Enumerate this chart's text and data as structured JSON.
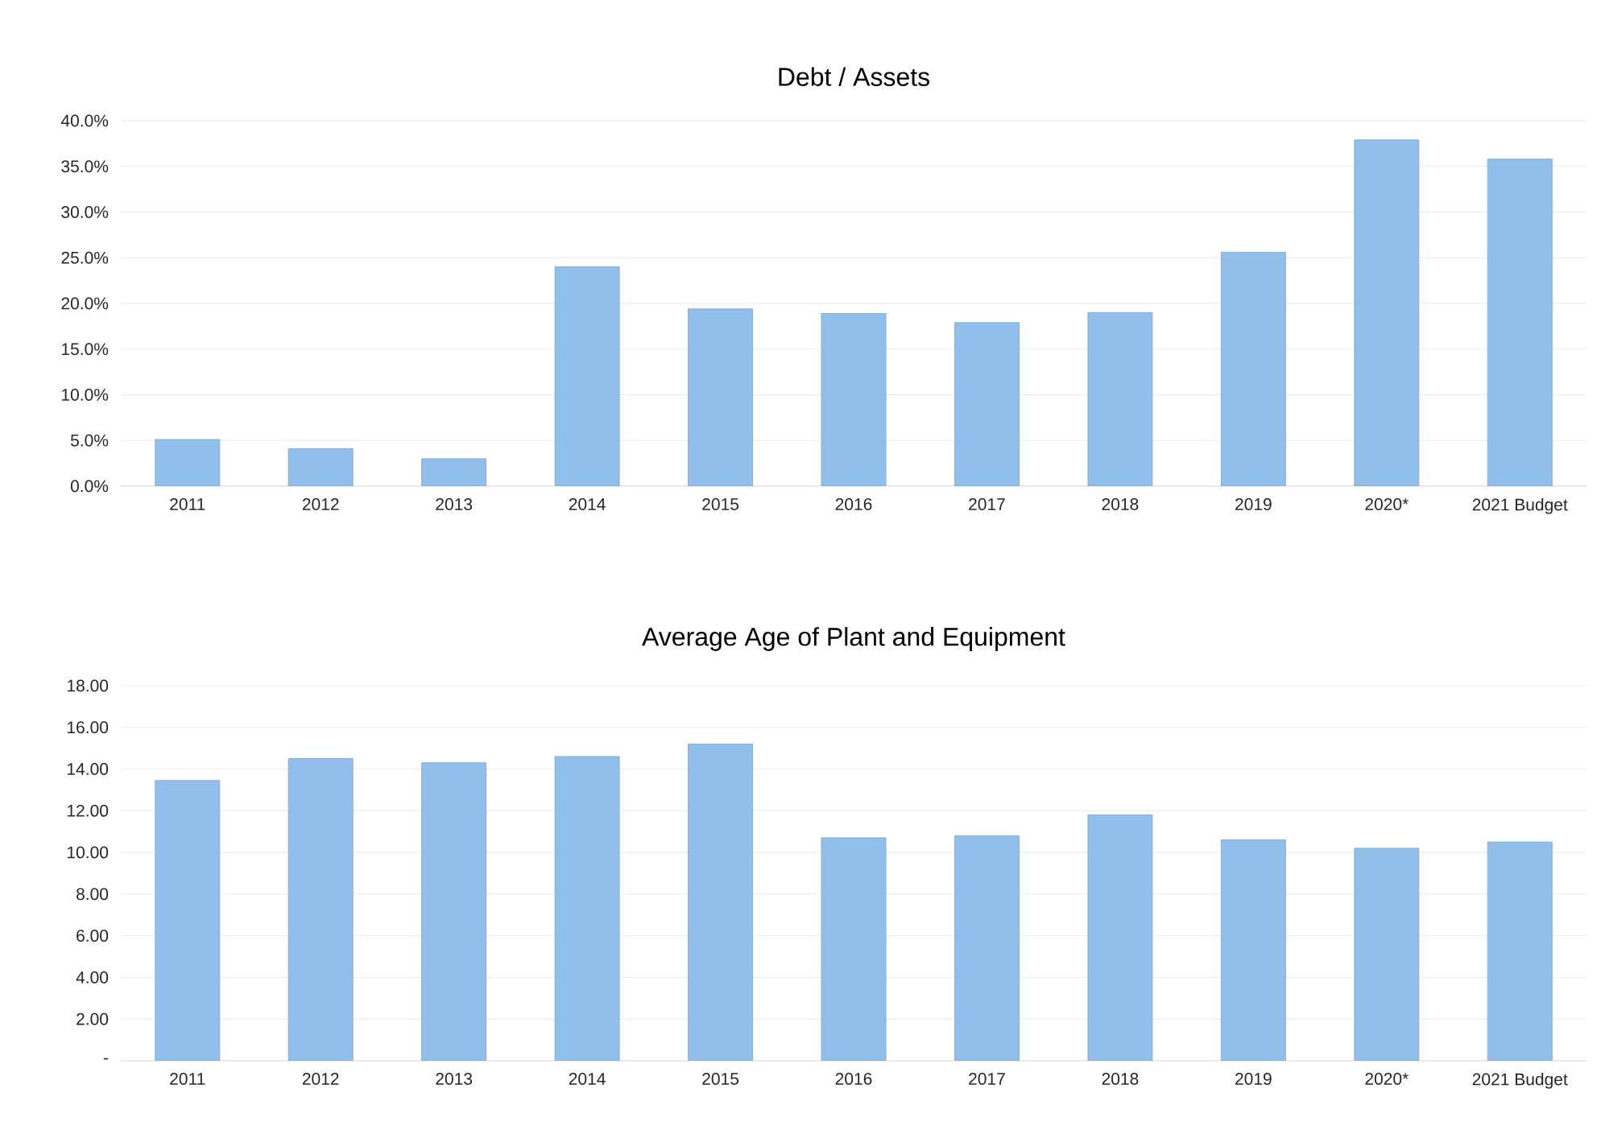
{
  "chart_data": [
    {
      "type": "bar",
      "title": "Debt / Assets",
      "categories": [
        "2011",
        "2012",
        "2013",
        "2014",
        "2015",
        "2016",
        "2017",
        "2018",
        "2019",
        "2020*",
        "2021 Budget"
      ],
      "values": [
        5.1,
        4.1,
        3.0,
        24.0,
        19.4,
        18.9,
        17.9,
        19.0,
        25.6,
        37.9,
        35.8
      ],
      "color": "#8fbfea",
      "ylim": [
        0,
        40
      ],
      "yticks": [
        {
          "value": 0,
          "label": "0.0%"
        },
        {
          "value": 5,
          "label": "5.0%"
        },
        {
          "value": 10,
          "label": "10.0%"
        },
        {
          "value": 15,
          "label": "15.0%"
        },
        {
          "value": 20,
          "label": "20.0%"
        },
        {
          "value": 25,
          "label": "25.0%"
        },
        {
          "value": 30,
          "label": "30.0%"
        },
        {
          "value": 35,
          "label": "35.0%"
        },
        {
          "value": 40,
          "label": "40.0%"
        }
      ],
      "grid": "y"
    },
    {
      "type": "bar",
      "title": "Average Age of Plant and Equipment",
      "categories": [
        "2011",
        "2012",
        "2013",
        "2014",
        "2015",
        "2016",
        "2017",
        "2018",
        "2019",
        "2020*",
        "2021 Budget"
      ],
      "values": [
        13.45,
        14.5,
        14.3,
        14.6,
        15.2,
        10.7,
        10.8,
        11.8,
        10.6,
        10.2,
        10.5
      ],
      "color": "#8fbfea",
      "ylim": [
        0,
        18
      ],
      "yticks": [
        {
          "value": 0,
          "label": "-"
        },
        {
          "value": 2,
          "label": "2.00"
        },
        {
          "value": 4,
          "label": "4.00"
        },
        {
          "value": 6,
          "label": "6.00"
        },
        {
          "value": 8,
          "label": "8.00"
        },
        {
          "value": 10,
          "label": "10.00"
        },
        {
          "value": 12,
          "label": "12.00"
        },
        {
          "value": 14,
          "label": "14.00"
        },
        {
          "value": 16,
          "label": "16.00"
        },
        {
          "value": 18,
          "label": "18.00"
        }
      ],
      "grid": "y"
    }
  ]
}
